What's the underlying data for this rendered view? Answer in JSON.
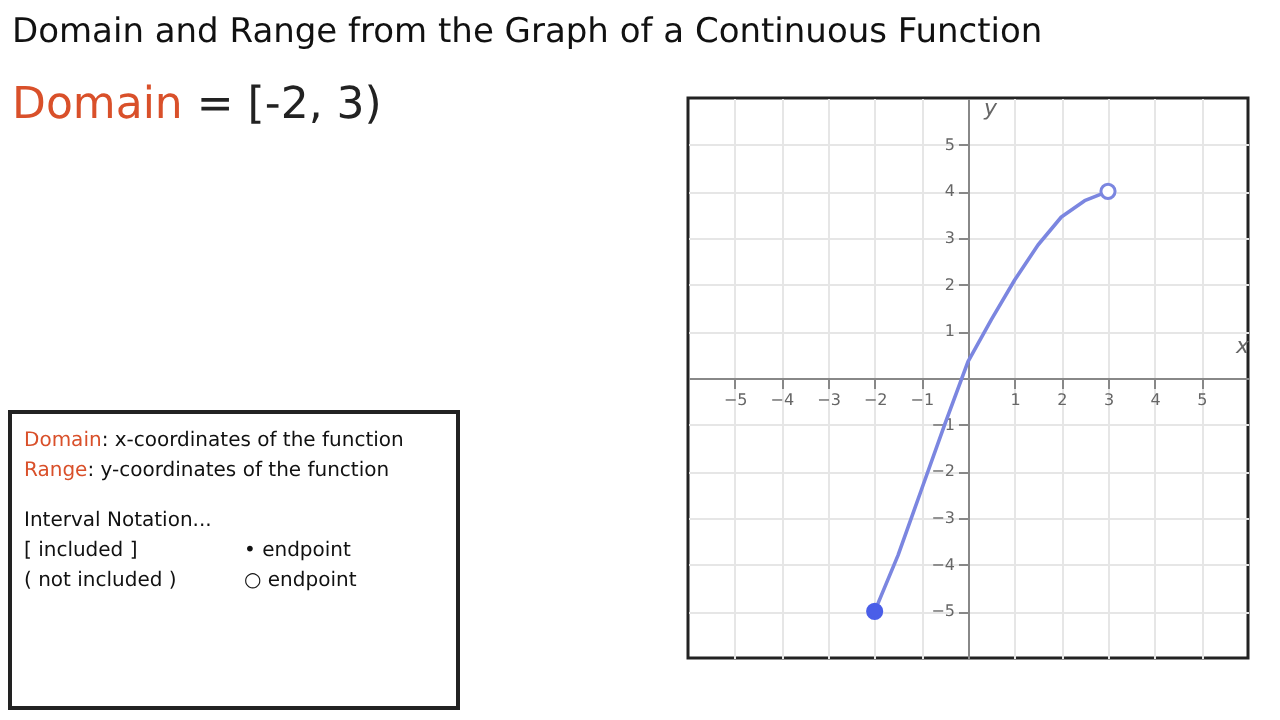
{
  "chart_data": {
    "type": "scatter",
    "title": "Domain and Range from the Graph of a Continuous Function",
    "xlabel": "x",
    "ylabel": "y",
    "annotations": [
      "Domain = [-2, 3)",
      "Domain: x-coordinates of the function",
      "Range: y-coordinates of the function",
      "Interval Notation...",
      "[ included ]",
      "• endpoint",
      "( not included )",
      "○ endpoint"
    ],
    "xlim": [
      -6,
      6
    ],
    "ylim": [
      -6,
      6
    ],
    "xticks": [
      -5,
      -4,
      -3,
      -2,
      -1,
      1,
      2,
      3,
      4,
      5
    ],
    "yticks": [
      -5,
      -4,
      -3,
      -2,
      -1,
      1,
      2,
      3,
      4,
      5
    ],
    "grid": true,
    "series": [
      {
        "type": "line",
        "color": "#7b86e0",
        "marker": "none",
        "x": [
          -2,
          -1.5,
          -1,
          -0.5,
          0,
          0.5,
          1,
          1.5,
          2,
          2.5,
          3
        ],
        "values": [
          -5,
          -3.8,
          -2.4,
          -1.0,
          0.35,
          1.25,
          2.1,
          2.85,
          3.45,
          3.8,
          4
        ]
      },
      {
        "color": "#4a5ee8",
        "marker": "circle",
        "x": [
          -2
        ],
        "values": [
          -5
        ]
      },
      {
        "color": "#ffffff",
        "marker": "circle",
        "x": [
          3
        ],
        "values": [
          4
        ]
      }
    ]
  }
}
